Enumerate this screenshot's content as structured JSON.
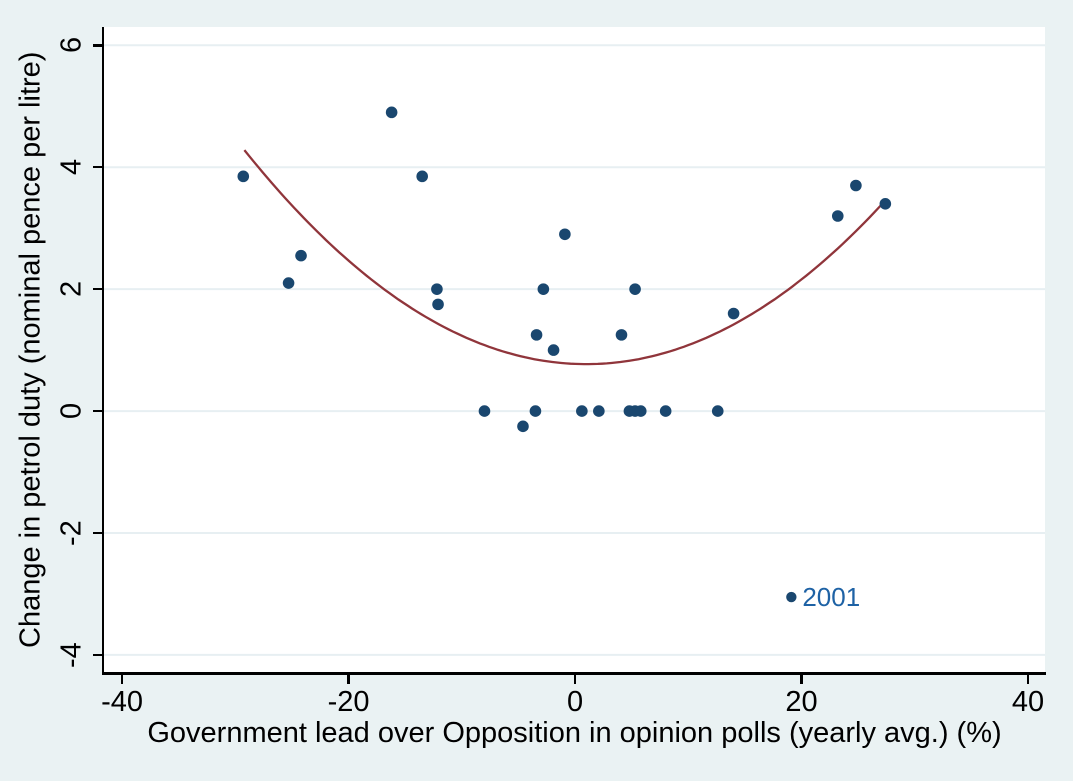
{
  "chart_data": {
    "type": "scatter",
    "title": "",
    "xlabel": "Government lead over Opposition in opinion polls (yearly avg.) (%)",
    "ylabel": "Change in petrol duty (nominal pence per litre)",
    "xlim": [
      -41.6,
      41.5
    ],
    "ylim": [
      -4.28,
      6.3
    ],
    "xticks": [
      -40,
      -20,
      0,
      20,
      40
    ],
    "yticks": [
      -4,
      -2,
      0,
      2,
      4,
      6
    ],
    "grid": "horizontal-only",
    "legend": "none",
    "points": [
      [
        -29.3,
        3.85
      ],
      [
        -25.3,
        2.1
      ],
      [
        -24.2,
        2.55
      ],
      [
        -16.2,
        4.9
      ],
      [
        -13.5,
        3.85
      ],
      [
        -12.2,
        2.0
      ],
      [
        -12.1,
        1.75
      ],
      [
        -8.0,
        0
      ],
      [
        -4.6,
        -0.25
      ],
      [
        -3.5,
        0
      ],
      [
        -3.4,
        1.25
      ],
      [
        -2.8,
        2.0
      ],
      [
        -1.9,
        1.0
      ],
      [
        -0.9,
        2.9
      ],
      [
        0.6,
        0
      ],
      [
        2.1,
        0
      ],
      [
        4.1,
        1.25
      ],
      [
        4.8,
        0
      ],
      [
        5.3,
        0
      ],
      [
        5.8,
        0
      ],
      [
        5.3,
        2.0
      ],
      [
        8.0,
        0
      ],
      [
        12.6,
        0
      ],
      [
        14.0,
        1.6
      ],
      [
        23.2,
        3.2
      ],
      [
        24.8,
        3.7
      ],
      [
        27.4,
        3.4
      ]
    ],
    "labeled_point": {
      "x": 19.1,
      "y": -3.05,
      "label": "2001"
    },
    "fit_curve": {
      "type": "quadratic",
      "a": 0.00385,
      "vertex_x": 1.0,
      "vertex_y": 0.77,
      "x_start": -29.2,
      "x_end": 27.4
    },
    "colors": {
      "marker": "#1a476f",
      "curve": "#90353b",
      "point_label": "#1e62a5",
      "background": "#eaf2f3",
      "plot_background": "#ffffff",
      "gridline": "#e7eff2",
      "axis": "#000000"
    }
  }
}
